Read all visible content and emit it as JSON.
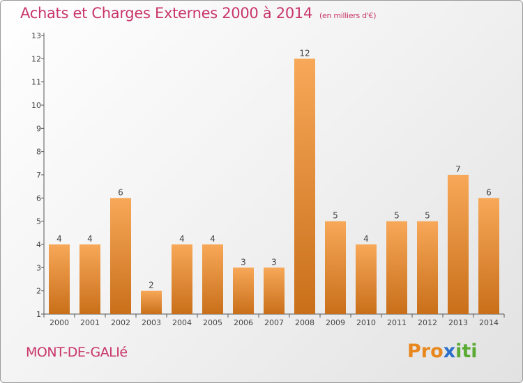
{
  "chart_data": {
    "type": "bar",
    "title": "Achats et Charges Externes 2000 à 2014",
    "unit": "(en milliers d'€)",
    "categories": [
      "2000",
      "2001",
      "2002",
      "2003",
      "2004",
      "2005",
      "2006",
      "2007",
      "2008",
      "2009",
      "2010",
      "2011",
      "2012",
      "2013",
      "2014"
    ],
    "values": [
      4,
      4,
      6,
      2,
      4,
      4,
      3,
      3,
      12,
      5,
      4,
      5,
      5,
      7,
      6
    ],
    "ylim": [
      1,
      13
    ],
    "yticks": [
      1,
      2,
      3,
      4,
      5,
      6,
      7,
      8,
      9,
      10,
      11,
      12,
      13
    ],
    "grid": false,
    "bar_color_top": "#f7a858",
    "bar_color_bottom": "#c96f1a"
  },
  "location": "MONT-DE-GALIé",
  "logo": {
    "letters": [
      "P",
      "r",
      "o",
      "x",
      "i",
      "t",
      "i"
    ],
    "colors": [
      "#e8871e",
      "#e8871e",
      "#e8871e",
      "#2a6fc9",
      "#5aaa34",
      "#5aaa34",
      "#5aaa34"
    ]
  },
  "colors": {
    "title": "#c8356a",
    "axis": "#555555"
  }
}
